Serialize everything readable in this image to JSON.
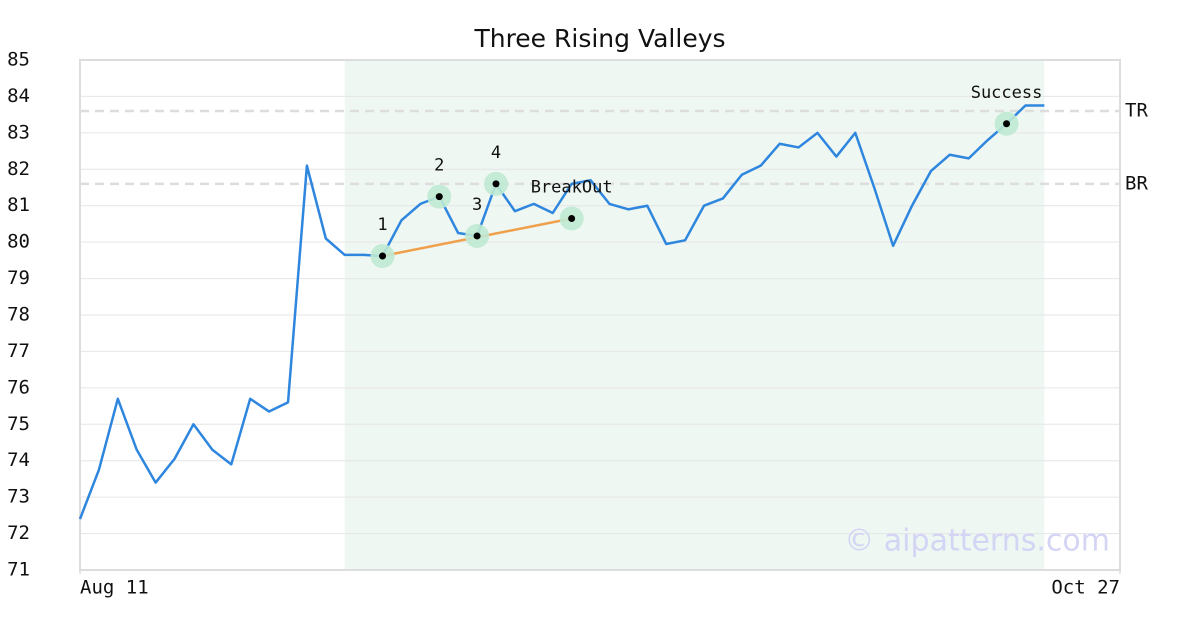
{
  "chart_data": {
    "type": "line",
    "title": "Three Rising Valleys",
    "color": "#2e86de",
    "x": [
      0,
      1,
      2,
      3,
      4,
      5,
      6,
      7,
      8,
      9,
      10,
      11,
      12,
      13,
      14,
      15,
      16,
      17,
      18,
      19,
      20,
      21,
      22,
      23,
      24,
      25,
      26,
      27,
      28,
      29,
      30,
      31,
      32,
      33,
      34,
      35,
      36,
      37,
      38,
      39,
      40,
      41,
      42,
      43,
      44,
      45,
      46,
      47,
      48,
      49,
      50,
      51
    ],
    "values": [
      72.4,
      73.75,
      75.7,
      74.3,
      73.4,
      74.05,
      75.0,
      74.3,
      73.9,
      75.7,
      75.35,
      75.6,
      82.1,
      80.1,
      79.65,
      79.65,
      79.62,
      80.6,
      81.05,
      81.25,
      80.25,
      80.17,
      81.6,
      80.85,
      81.05,
      80.8,
      81.6,
      81.7,
      81.05,
      80.9,
      81.0,
      79.95,
      80.05,
      81.0,
      81.2,
      81.85,
      82.1,
      82.7,
      82.6,
      83.0,
      82.35,
      83.0,
      81.5,
      79.9,
      81.0,
      81.95,
      82.4,
      82.3,
      82.8,
      83.25,
      83.75,
      83.75
    ],
    "xlim": [
      0,
      55
    ],
    "xticks": [
      {
        "value": 0,
        "label": "Aug 11"
      },
      {
        "value": 55,
        "label": "Oct 27"
      }
    ],
    "ylim": [
      71,
      85
    ],
    "yticks": [
      71,
      72,
      73,
      74,
      75,
      76,
      77,
      78,
      79,
      80,
      81,
      82,
      83,
      84,
      85
    ],
    "grid": true,
    "highlight": [
      14,
      51
    ],
    "highlight_color": "#eef7f2",
    "levels": [
      {
        "label": "TR",
        "value": 83.6
      },
      {
        "label": "BR",
        "value": 81.6
      }
    ],
    "trendline": {
      "x": [
        16,
        26
      ],
      "y": [
        79.62,
        80.65
      ],
      "color": "#f0a04b"
    },
    "annotations": [
      {
        "label": "1",
        "x": 16,
        "y": 79.62
      },
      {
        "label": "2",
        "x": 19,
        "y": 81.25
      },
      {
        "label": "3",
        "x": 21,
        "y": 80.17
      },
      {
        "label": "4",
        "x": 22,
        "y": 81.6
      },
      {
        "label": "BreakOut",
        "x": 26,
        "y": 80.65
      },
      {
        "label": "Success",
        "x": 49,
        "y": 83.25
      }
    ],
    "watermark": "© aipatterns.com"
  }
}
